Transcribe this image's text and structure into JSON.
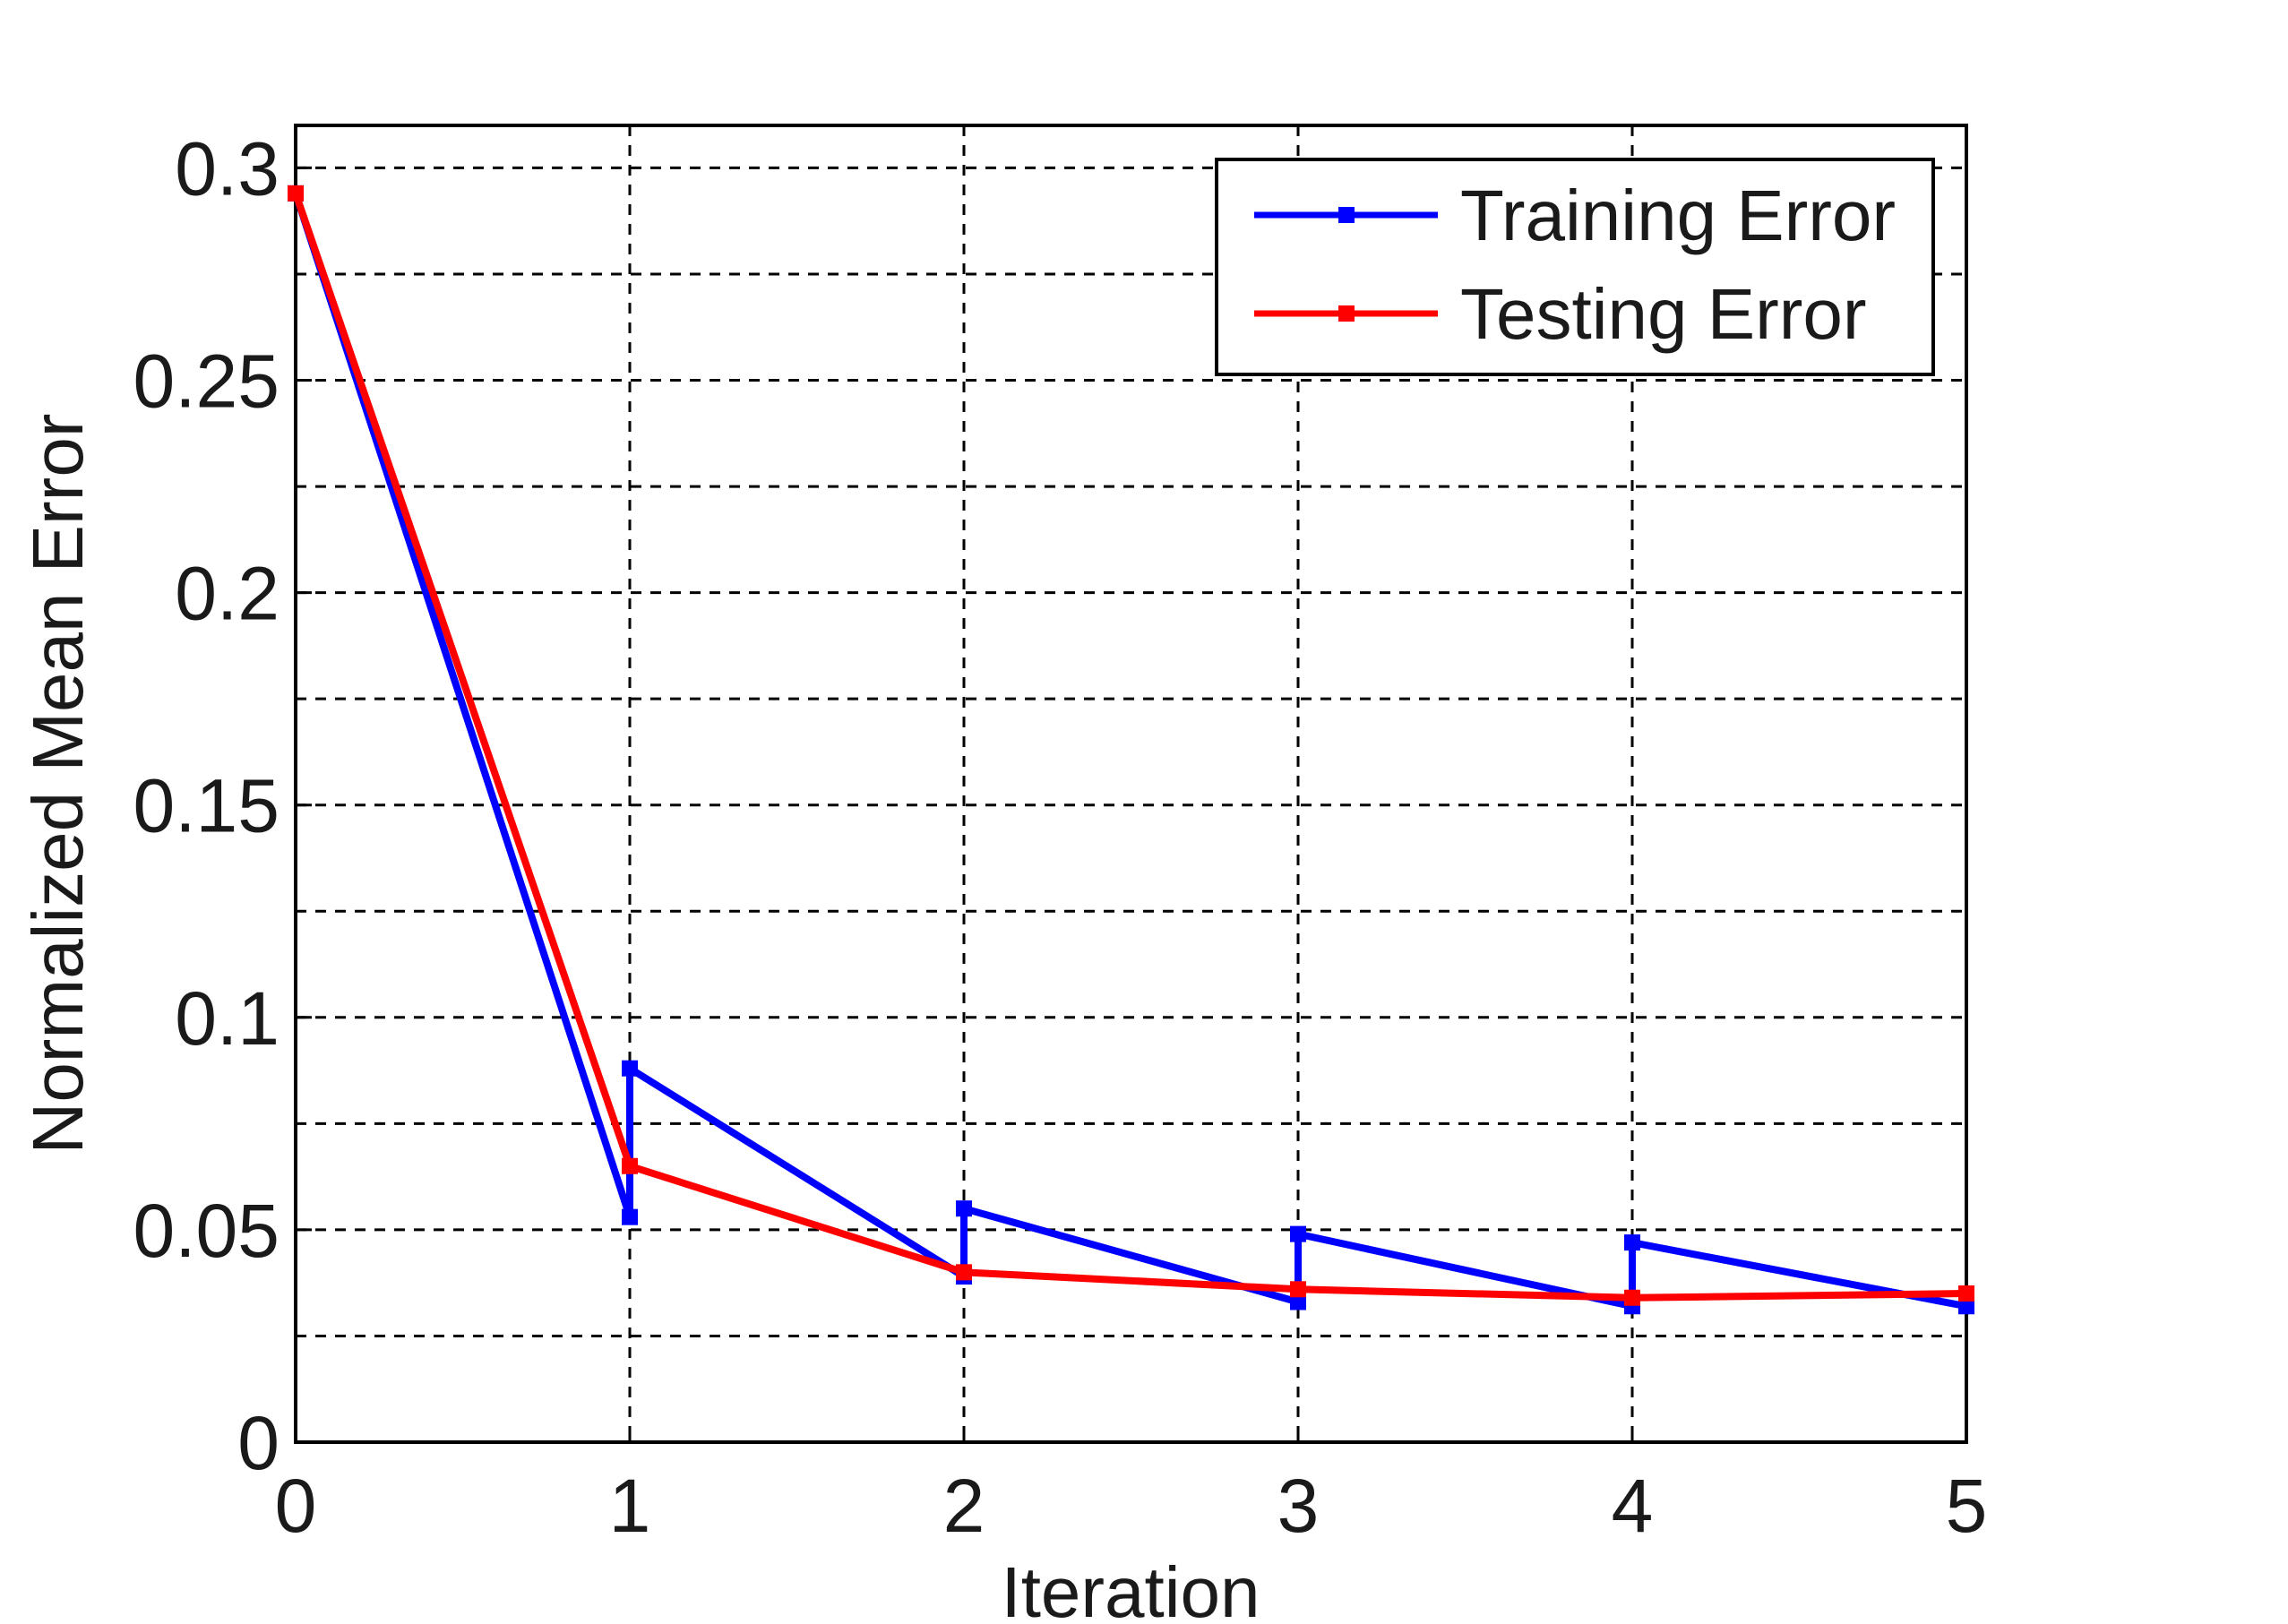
{
  "chart_data": {
    "type": "line",
    "title": "",
    "xlabel": "Iteration",
    "ylabel": "Normalized Mean Error",
    "xlim": [
      0,
      5
    ],
    "ylim": [
      0,
      0.31
    ],
    "x_ticks": [
      "0",
      "1",
      "2",
      "3",
      "4",
      "5"
    ],
    "y_ticks": [
      "0",
      "0.05",
      "0.1",
      "0.15",
      "0.2",
      "0.25",
      "0.3"
    ],
    "x_tick_values": [
      0,
      1,
      2,
      3,
      4,
      5
    ],
    "y_tick_values": [
      0,
      0.05,
      0.1,
      0.15,
      0.2,
      0.25,
      0.3
    ],
    "grid": true,
    "legend_position": "top-right",
    "series": [
      {
        "name": "Training Error",
        "color": "#0000ff",
        "x": [
          0,
          1,
          1,
          2,
          2,
          3,
          3,
          4,
          4,
          5
        ],
        "y": [
          0.294,
          0.053,
          0.088,
          0.039,
          0.055,
          0.033,
          0.049,
          0.032,
          0.047,
          0.032
        ]
      },
      {
        "name": "Testing Error",
        "color": "#ff0000",
        "x": [
          0,
          1,
          2,
          3,
          4,
          5
        ],
        "y": [
          0.294,
          0.065,
          0.04,
          0.036,
          0.034,
          0.035
        ]
      }
    ]
  }
}
